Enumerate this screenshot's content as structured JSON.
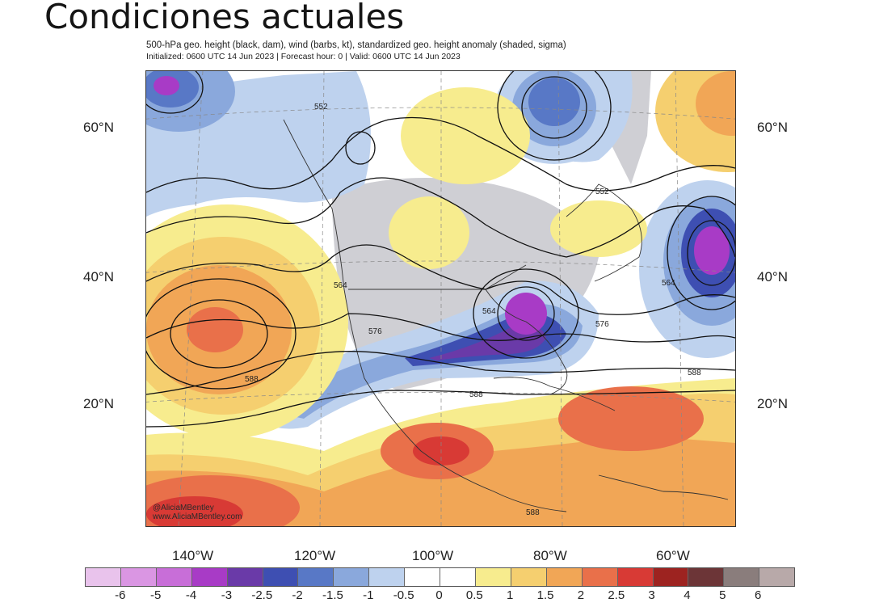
{
  "slide_title": "Condiciones actuales",
  "map": {
    "header_line1": "500-hPa geo. height (black, dam), wind (barbs, kt), standardized geo. height anomaly (shaded, sigma)",
    "header_line2": "Initialized: 0600 UTC 14 Jun 2023 | Forecast hour: 0 | Valid: 0600 UTC 14 Jun 2023",
    "credit_line1": "@AliciaMBentley",
    "credit_line2": "www.AliciaMBentley.com",
    "lat_labels": [
      "60°N",
      "40°N",
      "20°N"
    ],
    "lon_labels": [
      "140°W",
      "120°W",
      "100°W",
      "80°W",
      "60°W"
    ],
    "contour_labels": [
      "552",
      "552",
      "564",
      "564",
      "564",
      "576",
      "576",
      "588",
      "588",
      "588",
      "588"
    ]
  },
  "colorbar": {
    "ticks": [
      "-6",
      "-5",
      "-4",
      "-3",
      "-2.5",
      "-2",
      "-1.5",
      "-1",
      "-0.5",
      "0",
      "0.5",
      "1",
      "1.5",
      "2",
      "2.5",
      "3",
      "4",
      "5",
      "6"
    ],
    "colors": [
      "#e9c3ec",
      "#da96e3",
      "#c86ed8",
      "#a83bc6",
      "#6a3aa8",
      "#3e4fb2",
      "#5878c6",
      "#8aa8dc",
      "#bed2ee",
      "#ffffff",
      "#ffffff",
      "#f7ec8e",
      "#f5cf6f",
      "#f1a656",
      "#e9704a",
      "#d83a35",
      "#9d2320",
      "#6c3537",
      "#8a7d7c",
      "#b8a9a9"
    ]
  }
}
